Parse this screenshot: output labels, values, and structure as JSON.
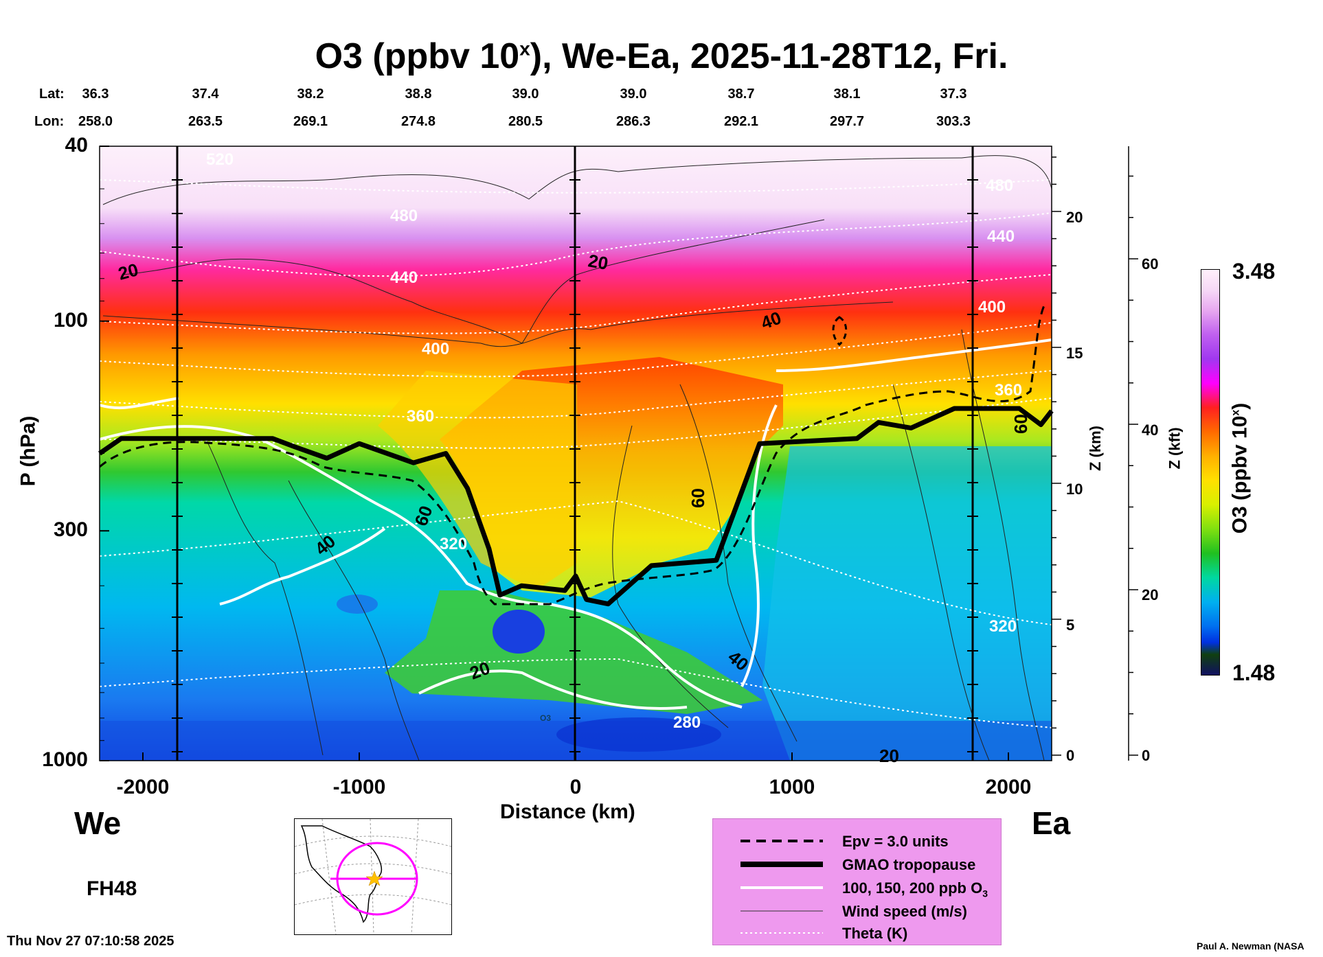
{
  "title": {
    "main": "O3 (ppbv 10",
    "sup": "x",
    "rest": "), We-Ea, 2025-11-28T12, Fri."
  },
  "header": {
    "lat_label": "Lat:",
    "lon_label": "Lon:",
    "lat": [
      "36.3",
      "37.4",
      "38.2",
      "38.8",
      "39.0",
      "39.0",
      "38.7",
      "38.1",
      "37.3"
    ],
    "lon": [
      "258.0",
      "263.5",
      "269.1",
      "274.8",
      "280.5",
      "286.3",
      "292.1",
      "297.7",
      "303.3"
    ]
  },
  "chart_data": {
    "type": "heatmap",
    "variable": "O3 (ppbv 10^x)",
    "xlabel": "Distance (km)",
    "xlim": [
      -2200,
      2200
    ],
    "xticks": [
      "-2000",
      "-1000",
      "0",
      "1000",
      "2000"
    ],
    "ylabel": "P (hPa)",
    "ylim_pressure": [
      1000,
      40
    ],
    "yticks_pressure": [
      "40",
      "100",
      "300",
      "1000"
    ],
    "z_km_label": "Z (km)",
    "z_km_ticks": [
      "0",
      "5",
      "10",
      "15",
      "20"
    ],
    "z_kft_label": "Z (kft)",
    "z_kft_ticks": [
      "0",
      "20",
      "40",
      "60"
    ],
    "colorbar": {
      "label": "O3 (ppbv 10",
      "label_sup": "x",
      "label_end": ")",
      "max": "3.48",
      "min": "1.48"
    },
    "left_label": "We",
    "right_label": "Ea",
    "forecast_hour": "FH48",
    "tropopause_pressure_hPa": [
      {
        "x": -2200,
        "p": 200
      },
      {
        "x": -2100,
        "p": 185
      },
      {
        "x": -1400,
        "p": 185
      },
      {
        "x": -1300,
        "p": 193
      },
      {
        "x": -1150,
        "p": 205
      },
      {
        "x": -1000,
        "p": 190
      },
      {
        "x": -750,
        "p": 210
      },
      {
        "x": -600,
        "p": 200
      },
      {
        "x": -500,
        "p": 240
      },
      {
        "x": -400,
        "p": 330
      },
      {
        "x": -350,
        "p": 420
      },
      {
        "x": -250,
        "p": 400
      },
      {
        "x": -50,
        "p": 410
      },
      {
        "x": 0,
        "p": 380
      },
      {
        "x": 50,
        "p": 430
      },
      {
        "x": 150,
        "p": 440
      },
      {
        "x": 350,
        "p": 360
      },
      {
        "x": 650,
        "p": 350
      },
      {
        "x": 850,
        "p": 190
      },
      {
        "x": 1300,
        "p": 185
      },
      {
        "x": 1400,
        "p": 170
      },
      {
        "x": 1550,
        "p": 175
      },
      {
        "x": 1750,
        "p": 158
      },
      {
        "x": 2050,
        "p": 158
      },
      {
        "x": 2150,
        "p": 172
      },
      {
        "x": 2200,
        "p": 160
      }
    ],
    "contour_labels": {
      "wind_speed": [
        "20",
        "20",
        "40",
        "60",
        "40",
        "60",
        "20",
        "40",
        "20",
        "60"
      ],
      "theta": [
        "440",
        "480",
        "400",
        "360",
        "320",
        "280",
        "440",
        "400",
        "360",
        "320",
        "480",
        "520"
      ],
      "o3_small": "O3"
    }
  },
  "legend": {
    "items": [
      {
        "label": "Epv = 3.0 units"
      },
      {
        "label": "GMAO tropopause"
      },
      {
        "label": "100, 150, 200 ppb O",
        "sub": "3"
      },
      {
        "label": "Wind speed (m/s)"
      },
      {
        "label": "Theta (K)"
      }
    ]
  },
  "footer": {
    "timestamp": "Thu Nov 27 07:10:58 2025",
    "credit": "Paul A. Newman (NASA"
  },
  "colors": {
    "legend_bg": "#ee99ee",
    "inset_circle": "#ff00ff",
    "inset_star": "#ffc000"
  }
}
